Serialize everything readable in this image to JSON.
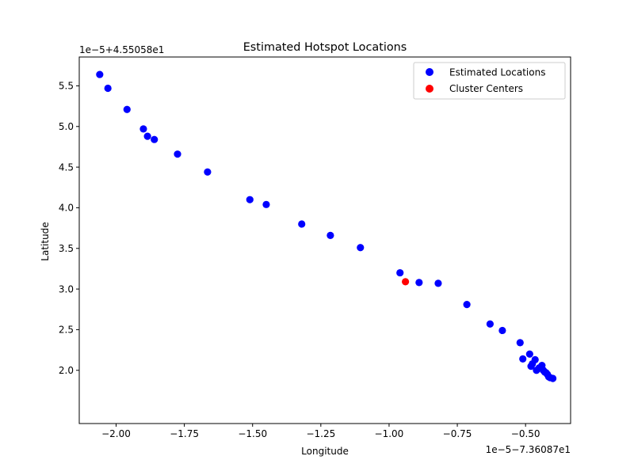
{
  "chart_data": {
    "type": "scatter",
    "title": "Estimated Hotspot Locations",
    "xlabel": "Longitude",
    "ylabel": "Latitude",
    "x_offset_label": "1e−5−7.36087e1",
    "y_offset_label": "1e−5+4.55058e1",
    "xlim": [
      -2.135,
      -0.335
    ],
    "ylim": [
      1.345,
      5.855
    ],
    "x_ticks": [
      -2.0,
      -1.75,
      -1.5,
      -1.25,
      -1.0,
      -0.75,
      -0.5
    ],
    "x_tick_labels": [
      "−2.00",
      "−1.75",
      "−1.50",
      "−1.25",
      "−1.00",
      "−0.75",
      "−0.50"
    ],
    "y_ticks": [
      2.0,
      2.5,
      3.0,
      3.5,
      4.0,
      4.5,
      5.0,
      5.5
    ],
    "y_tick_labels": [
      "2.0",
      "2.5",
      "3.0",
      "3.5",
      "4.0",
      "4.5",
      "5.0",
      "5.5"
    ],
    "grid": false,
    "legend_position": "top-right",
    "series": [
      {
        "name": "Estimated Locations",
        "color": "#0000ff",
        "points": [
          [
            -2.06,
            5.64
          ],
          [
            -2.03,
            5.47
          ],
          [
            -1.96,
            5.21
          ],
          [
            -1.9,
            4.97
          ],
          [
            -1.885,
            4.88
          ],
          [
            -1.86,
            4.84
          ],
          [
            -1.775,
            4.66
          ],
          [
            -1.665,
            4.44
          ],
          [
            -1.51,
            4.1
          ],
          [
            -1.45,
            4.04
          ],
          [
            -1.32,
            3.8
          ],
          [
            -1.215,
            3.66
          ],
          [
            -1.105,
            3.51
          ],
          [
            -0.96,
            3.2
          ],
          [
            -0.89,
            3.08
          ],
          [
            -0.82,
            3.07
          ],
          [
            -0.715,
            2.81
          ],
          [
            -0.63,
            2.57
          ],
          [
            -0.585,
            2.49
          ],
          [
            -0.52,
            2.34
          ],
          [
            -0.51,
            2.14
          ],
          [
            -0.485,
            2.2
          ],
          [
            -0.48,
            2.05
          ],
          [
            -0.475,
            2.08
          ],
          [
            -0.465,
            2.13
          ],
          [
            -0.46,
            2.0
          ],
          [
            -0.45,
            2.03
          ],
          [
            -0.44,
            2.06
          ],
          [
            -0.435,
            2.0
          ],
          [
            -0.43,
            1.98
          ],
          [
            -0.425,
            1.97
          ],
          [
            -0.42,
            1.95
          ],
          [
            -0.415,
            1.92
          ],
          [
            -0.41,
            1.91
          ],
          [
            -0.4,
            1.9
          ]
        ]
      },
      {
        "name": "Cluster Centers",
        "color": "#ff0000",
        "points": [
          [
            -0.94,
            3.09
          ]
        ]
      }
    ]
  }
}
